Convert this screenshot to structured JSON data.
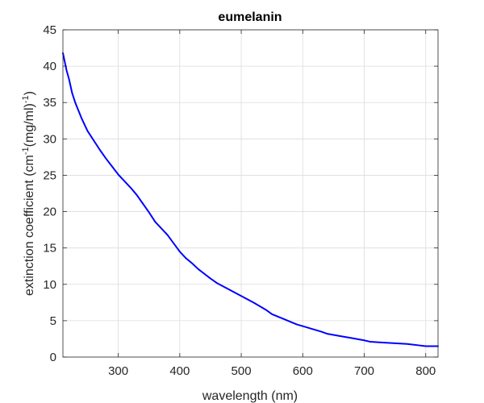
{
  "chart_data": {
    "type": "line",
    "title": "eumelanin",
    "xlabel": "wavelength (nm)",
    "ylabel": {
      "prefix": "extinction coefficient (cm",
      "sup1": "-1",
      "middle": "(mg/ml)",
      "sup2": "-1",
      "suffix": ")"
    },
    "xlim": [
      210,
      820
    ],
    "ylim": [
      0,
      45
    ],
    "xticks": [
      300,
      400,
      500,
      600,
      700,
      800
    ],
    "yticks": [
      0,
      5,
      10,
      15,
      20,
      25,
      30,
      35,
      40,
      45
    ],
    "grid": true,
    "series": [
      {
        "color": "#0000ff",
        "x": [
          210,
          213,
          216,
          220,
          225,
          230,
          240,
          250,
          270,
          280,
          300,
          320,
          330,
          340,
          350,
          360,
          380,
          400,
          410,
          420,
          430,
          450,
          460,
          480,
          500,
          520,
          540,
          550,
          570,
          590,
          610,
          630,
          640,
          660,
          680,
          700,
          710,
          730,
          750,
          770,
          790,
          800,
          810,
          820
        ],
        "y": [
          41.8,
          40.6,
          39.4,
          38.2,
          36.3,
          35.0,
          32.9,
          31.1,
          28.5,
          27.3,
          25.1,
          23.3,
          22.3,
          21.1,
          19.9,
          18.6,
          16.8,
          14.5,
          13.6,
          12.9,
          12.1,
          10.8,
          10.2,
          9.3,
          8.4,
          7.5,
          6.5,
          5.9,
          5.2,
          4.5,
          4.0,
          3.5,
          3.2,
          2.9,
          2.6,
          2.3,
          2.1,
          2.0,
          1.9,
          1.8,
          1.6,
          1.5,
          1.5,
          1.5
        ]
      }
    ]
  }
}
